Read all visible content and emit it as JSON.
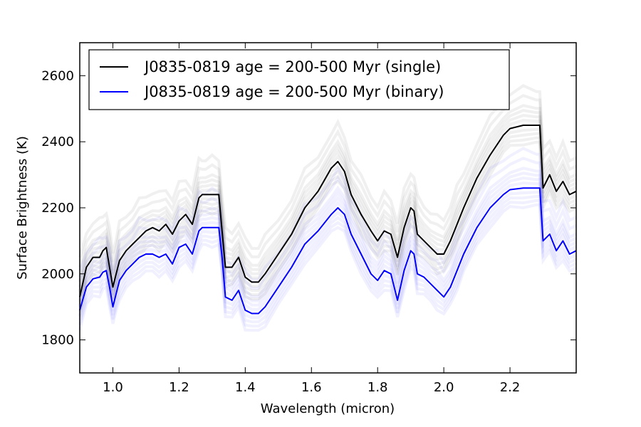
{
  "chart_data": {
    "type": "line",
    "title": "",
    "xlabel": "Wavelength (micron)",
    "ylabel": "Surface Brightness (K)",
    "xlim": [
      0.9,
      2.4
    ],
    "ylim": [
      1700,
      2700
    ],
    "xticks": [
      1.0,
      1.2,
      1.4,
      1.6,
      1.8,
      2.0,
      2.2
    ],
    "xtick_labels": [
      "1.0",
      "1.2",
      "1.4",
      "1.6",
      "1.8",
      "2.0",
      "2.2"
    ],
    "yticks": [
      1800,
      2000,
      2200,
      2400,
      2600
    ],
    "ytick_labels": [
      "1800",
      "2000",
      "2200",
      "2400",
      "2600"
    ],
    "grid": false,
    "legend_position": "top-left",
    "series": [
      {
        "name": "J0835-0819 age = 200-500 Myr (single)",
        "color": "#000000",
        "x": [
          0.9,
          0.92,
          0.94,
          0.96,
          0.97,
          0.98,
          0.99,
          1.0,
          1.01,
          1.02,
          1.04,
          1.06,
          1.08,
          1.1,
          1.12,
          1.14,
          1.16,
          1.18,
          1.2,
          1.22,
          1.24,
          1.26,
          1.27,
          1.28,
          1.3,
          1.32,
          1.33,
          1.34,
          1.36,
          1.38,
          1.4,
          1.42,
          1.44,
          1.46,
          1.5,
          1.54,
          1.58,
          1.62,
          1.66,
          1.68,
          1.7,
          1.72,
          1.75,
          1.78,
          1.8,
          1.82,
          1.84,
          1.86,
          1.88,
          1.9,
          1.91,
          1.92,
          1.94,
          1.96,
          1.98,
          2.0,
          2.02,
          2.04,
          2.06,
          2.1,
          2.14,
          2.18,
          2.2,
          2.24,
          2.28,
          2.29,
          2.3,
          2.32,
          2.34,
          2.36,
          2.38,
          2.4
        ],
        "y": [
          1930,
          2020,
          2050,
          2050,
          2070,
          2080,
          2020,
          1960,
          2000,
          2040,
          2070,
          2090,
          2110,
          2130,
          2140,
          2130,
          2150,
          2120,
          2160,
          2180,
          2150,
          2230,
          2240,
          2240,
          2240,
          2240,
          2130,
          2020,
          2020,
          2050,
          1990,
          1975,
          1975,
          2000,
          2060,
          2120,
          2200,
          2250,
          2320,
          2340,
          2310,
          2240,
          2180,
          2130,
          2100,
          2130,
          2120,
          2050,
          2140,
          2200,
          2190,
          2120,
          2100,
          2080,
          2060,
          2060,
          2100,
          2150,
          2200,
          2290,
          2360,
          2420,
          2440,
          2450,
          2450,
          2450,
          2260,
          2300,
          2250,
          2280,
          2240,
          2250
        ]
      },
      {
        "name": "J0835-0819 age = 200-500 Myr (binary)",
        "color": "#0000ff",
        "x": [
          0.9,
          0.92,
          0.94,
          0.96,
          0.97,
          0.98,
          0.99,
          1.0,
          1.01,
          1.02,
          1.04,
          1.06,
          1.08,
          1.1,
          1.12,
          1.14,
          1.16,
          1.18,
          1.2,
          1.22,
          1.24,
          1.26,
          1.27,
          1.28,
          1.3,
          1.32,
          1.33,
          1.34,
          1.36,
          1.38,
          1.4,
          1.42,
          1.44,
          1.46,
          1.5,
          1.54,
          1.58,
          1.62,
          1.66,
          1.68,
          1.7,
          1.72,
          1.75,
          1.78,
          1.8,
          1.82,
          1.84,
          1.86,
          1.88,
          1.9,
          1.91,
          1.92,
          1.94,
          1.96,
          1.98,
          2.0,
          2.02,
          2.04,
          2.06,
          2.1,
          2.14,
          2.18,
          2.2,
          2.24,
          2.28,
          2.29,
          2.3,
          2.32,
          2.34,
          2.36,
          2.38,
          2.4
        ],
        "y": [
          1890,
          1960,
          1985,
          1990,
          2005,
          2010,
          1960,
          1900,
          1940,
          1980,
          2010,
          2030,
          2050,
          2060,
          2060,
          2050,
          2060,
          2030,
          2080,
          2090,
          2060,
          2130,
          2140,
          2140,
          2140,
          2140,
          2050,
          1930,
          1920,
          1950,
          1890,
          1880,
          1880,
          1900,
          1960,
          2020,
          2090,
          2130,
          2180,
          2200,
          2180,
          2120,
          2060,
          2000,
          1980,
          2010,
          2000,
          1920,
          2010,
          2070,
          2060,
          2000,
          1990,
          1970,
          1950,
          1930,
          1960,
          2010,
          2060,
          2140,
          2200,
          2240,
          2255,
          2260,
          2260,
          2260,
          2100,
          2120,
          2070,
          2100,
          2060,
          2070
        ]
      }
    ]
  }
}
